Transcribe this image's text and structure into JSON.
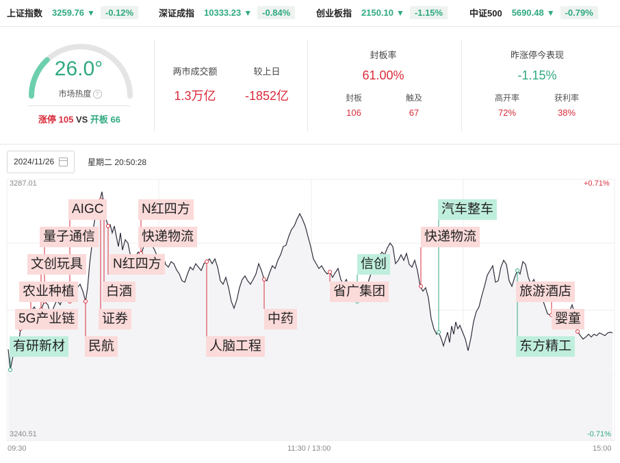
{
  "indices": [
    {
      "name": "上证指数",
      "value": "3259.76",
      "change": "-0.12%"
    },
    {
      "name": "深证成指",
      "value": "10333.23",
      "change": "-0.84%"
    },
    {
      "name": "创业板指",
      "value": "2150.10",
      "change": "-1.15%"
    },
    {
      "name": "中证500",
      "value": "5690.48",
      "change": "-0.79%"
    }
  ],
  "heat": {
    "value": "26.0°",
    "label": "市场热度",
    "level": 0.26,
    "limit_up_label": "涨停",
    "limit_up_count": "105",
    "vs": "VS",
    "open_label": "开板",
    "open_count": "66"
  },
  "turnover": {
    "label": "两市成交额",
    "value": "1.3万亿",
    "compare_label": "较上日",
    "compare_value": "-1852亿"
  },
  "seal": {
    "label": "封板率",
    "value": "61.00%",
    "sealed_label": "封板",
    "sealed_value": "106",
    "touched_label": "触及",
    "touched_value": "67"
  },
  "yesterday": {
    "label": "昨涨停今表现",
    "value": "-1.15%",
    "high_open_label": "高开率",
    "high_open_value": "72%",
    "profit_label": "获利率",
    "profit_value": "38%"
  },
  "date": {
    "value": "2024/11/26",
    "weekday_time": "星期二 20:50:28"
  },
  "chart": {
    "y_top": "3287.01",
    "y_bottom": "3240.51",
    "pct_top": "+0.71%",
    "pct_bottom": "-0.71%",
    "x_start": "09:30",
    "x_mid": "11:30 / 13:00",
    "x_end": "15:00",
    "colors": {
      "up": "#d92b3a",
      "down": "#2fa982",
      "line": "#2b2b3a"
    }
  },
  "tags": [
    "有研新材",
    "5G产业链",
    "农业种植",
    "文创玩具",
    "量子通信",
    "AIGC",
    "民航",
    "证券",
    "白酒",
    "N红四方",
    "N红四方",
    "快递物流",
    "人脑工程",
    "中药",
    "省广集团",
    "信创",
    "快递物流",
    "汽车整车",
    "东方精工",
    "旅游酒店",
    "婴童"
  ]
}
